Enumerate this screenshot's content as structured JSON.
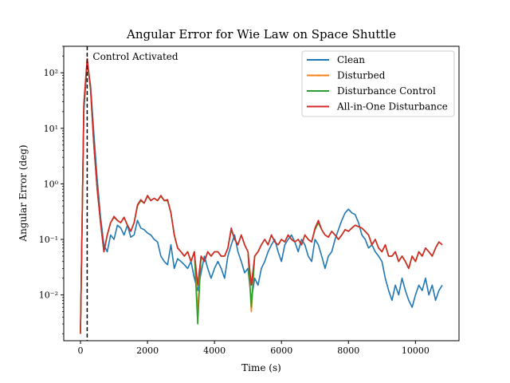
{
  "chart_data": {
    "type": "line",
    "title": "Angular Error for Wie Law on Space Shuttle",
    "xlabel": "Time (s)",
    "ylabel": "Angular Error (deg)",
    "xlim": [
      -500,
      11300
    ],
    "ylim": [
      0.0015,
      300
    ],
    "yscale": "log",
    "x_ticks": [
      0,
      2000,
      4000,
      6000,
      8000,
      10000
    ],
    "x_tick_labels": [
      "0",
      "2000",
      "4000",
      "6000",
      "8000",
      "10000"
    ],
    "y_ticks": [
      0.01,
      0.1,
      1,
      10,
      100
    ],
    "y_tick_labels": [
      "10⁻²",
      "10⁻¹",
      "10⁰",
      "10¹",
      "10²"
    ],
    "grid": false,
    "legend_position": "top-right",
    "annotation": {
      "text": "Control Activated",
      "x": 200,
      "line_style": "dashed",
      "color": "#000000"
    },
    "series": [
      {
        "name": "Clean",
        "color": "#1f77b4",
        "x": [
          0,
          100,
          200,
          300,
          400,
          500,
          600,
          700,
          800,
          900,
          1000,
          1100,
          1200,
          1300,
          1400,
          1500,
          1600,
          1700,
          1800,
          1900,
          2000,
          2100,
          2200,
          2300,
          2400,
          2500,
          2600,
          2700,
          2800,
          2900,
          3000,
          3100,
          3200,
          3300,
          3400,
          3500,
          3600,
          3700,
          3800,
          3900,
          4000,
          4100,
          4200,
          4300,
          4400,
          4500,
          4600,
          4700,
          4800,
          4900,
          5000,
          5100,
          5200,
          5300,
          5400,
          5500,
          5600,
          5700,
          5800,
          5900,
          6000,
          6100,
          6200,
          6300,
          6400,
          6500,
          6600,
          6700,
          6800,
          6900,
          7000,
          7100,
          7200,
          7300,
          7400,
          7500,
          7600,
          7700,
          7800,
          7900,
          8000,
          8100,
          8200,
          8300,
          8400,
          8500,
          8600,
          8700,
          8800,
          8900,
          9000,
          9100,
          9200,
          9300,
          9400,
          9500,
          9600,
          9700,
          9800,
          9900,
          10000,
          10100,
          10200,
          10300,
          10400,
          10500,
          10600,
          10700,
          10800
        ],
        "y": [
          0.0025,
          20,
          150,
          60,
          8,
          1.2,
          0.25,
          0.08,
          0.06,
          0.12,
          0.1,
          0.18,
          0.16,
          0.12,
          0.18,
          0.11,
          0.12,
          0.22,
          0.16,
          0.15,
          0.13,
          0.12,
          0.1,
          0.09,
          0.05,
          0.04,
          0.035,
          0.08,
          0.03,
          0.045,
          0.04,
          0.035,
          0.03,
          0.04,
          0.02,
          0.012,
          0.025,
          0.05,
          0.03,
          0.02,
          0.03,
          0.04,
          0.03,
          0.02,
          0.05,
          0.08,
          0.12,
          0.06,
          0.04,
          0.025,
          0.03,
          0.008,
          0.02,
          0.015,
          0.03,
          0.04,
          0.06,
          0.08,
          0.1,
          0.06,
          0.04,
          0.08,
          0.1,
          0.12,
          0.09,
          0.06,
          0.1,
          0.08,
          0.05,
          0.04,
          0.1,
          0.08,
          0.05,
          0.03,
          0.05,
          0.06,
          0.1,
          0.15,
          0.22,
          0.3,
          0.35,
          0.3,
          0.28,
          0.2,
          0.12,
          0.1,
          0.07,
          0.08,
          0.06,
          0.05,
          0.04,
          0.02,
          0.012,
          0.008,
          0.015,
          0.01,
          0.02,
          0.012,
          0.008,
          0.006,
          0.01,
          0.015,
          0.012,
          0.02,
          0.01,
          0.015,
          0.008,
          0.012,
          0.015
        ]
      },
      {
        "name": "Disturbed",
        "color": "#ff7f0e",
        "x": [
          0,
          100,
          200,
          300,
          400,
          500,
          600,
          700,
          800,
          900,
          1000,
          1100,
          1200,
          1300,
          1400,
          1500,
          1600,
          1700,
          1800,
          1900,
          2000,
          2100,
          2200,
          2300,
          2400,
          2500,
          2600,
          2700,
          2800,
          2900,
          3000,
          3100,
          3200,
          3300,
          3400,
          3500,
          3600,
          3700,
          3800,
          3900,
          4000,
          4100,
          4200,
          4300,
          4400,
          4500,
          4600,
          4700,
          4800,
          4900,
          5000,
          5100,
          5200,
          5300,
          5400,
          5500,
          5600,
          5700,
          5800,
          5900,
          6000,
          6100,
          6200,
          6300,
          6400,
          6500,
          6600,
          6700,
          6800,
          6900,
          7000,
          7100,
          7200,
          7300,
          7400,
          7500,
          7600,
          7700,
          7800,
          7900,
          8000,
          8100,
          8200,
          8300,
          8400,
          8500,
          8600,
          8700,
          8800,
          8900,
          9000,
          9100,
          9200,
          9300,
          9400,
          9500,
          9600,
          9700,
          9800,
          9900,
          10000,
          10100,
          10200,
          10300,
          10400,
          10500,
          10600,
          10700,
          10800
        ],
        "y": [
          0.002,
          25,
          170,
          50,
          5,
          0.8,
          0.2,
          0.06,
          0.12,
          0.2,
          0.25,
          0.22,
          0.2,
          0.25,
          0.18,
          0.14,
          0.2,
          0.4,
          0.5,
          0.45,
          0.6,
          0.5,
          0.55,
          0.5,
          0.6,
          0.5,
          0.5,
          0.3,
          0.12,
          0.07,
          0.06,
          0.05,
          0.06,
          0.04,
          0.06,
          0.005,
          0.05,
          0.04,
          0.06,
          0.05,
          0.06,
          0.06,
          0.05,
          0.05,
          0.07,
          0.15,
          0.1,
          0.08,
          0.12,
          0.08,
          0.06,
          0.005,
          0.05,
          0.06,
          0.08,
          0.1,
          0.08,
          0.12,
          0.09,
          0.08,
          0.1,
          0.09,
          0.12,
          0.1,
          0.09,
          0.1,
          0.08,
          0.12,
          0.1,
          0.09,
          0.15,
          0.2,
          0.15,
          0.12,
          0.11,
          0.14,
          0.12,
          0.1,
          0.12,
          0.15,
          0.14,
          0.16,
          0.18,
          0.17,
          0.16,
          0.14,
          0.12,
          0.08,
          0.1,
          0.07,
          0.06,
          0.08,
          0.05,
          0.05,
          0.06,
          0.04,
          0.05,
          0.04,
          0.03,
          0.05,
          0.04,
          0.06,
          0.05,
          0.07,
          0.06,
          0.05,
          0.07,
          0.09,
          0.08
        ]
      },
      {
        "name": "Disturbance Control",
        "color": "#2ca02c",
        "x": [
          0,
          100,
          200,
          300,
          400,
          500,
          600,
          700,
          800,
          900,
          1000,
          1100,
          1200,
          1300,
          1400,
          1500,
          1600,
          1700,
          1800,
          1900,
          2000,
          2100,
          2200,
          2300,
          2400,
          2500,
          2600,
          2700,
          2800,
          2900,
          3000,
          3100,
          3200,
          3300,
          3400,
          3500,
          3600,
          3700,
          3800,
          3900,
          4000,
          4100,
          4200,
          4300,
          4400,
          4500,
          4600,
          4700,
          4800,
          4900,
          5000,
          5100,
          5200,
          5300,
          5400,
          5500,
          5600,
          5700,
          5800,
          5900,
          6000,
          6100,
          6200,
          6300,
          6400,
          6500,
          6600,
          6700,
          6800,
          6900,
          7000,
          7100,
          7200,
          7300,
          7400,
          7500,
          7600,
          7700,
          7800,
          7900,
          8000,
          8100,
          8200,
          8300,
          8400,
          8500,
          8600,
          8700,
          8800,
          8900,
          9000,
          9100,
          9200,
          9300,
          9400,
          9500,
          9600,
          9700,
          9800,
          9900,
          10000,
          10100,
          10200,
          10300,
          10400,
          10500,
          10600,
          10700,
          10800
        ],
        "y": [
          0.002,
          25,
          170,
          50,
          5,
          0.8,
          0.2,
          0.06,
          0.12,
          0.2,
          0.25,
          0.22,
          0.2,
          0.25,
          0.18,
          0.14,
          0.2,
          0.4,
          0.5,
          0.45,
          0.6,
          0.5,
          0.55,
          0.5,
          0.6,
          0.5,
          0.5,
          0.3,
          0.12,
          0.07,
          0.06,
          0.05,
          0.06,
          0.04,
          0.06,
          0.003,
          0.05,
          0.04,
          0.06,
          0.05,
          0.06,
          0.06,
          0.05,
          0.05,
          0.07,
          0.15,
          0.1,
          0.08,
          0.12,
          0.08,
          0.06,
          0.006,
          0.05,
          0.06,
          0.08,
          0.1,
          0.08,
          0.12,
          0.09,
          0.08,
          0.1,
          0.09,
          0.12,
          0.1,
          0.09,
          0.1,
          0.08,
          0.12,
          0.1,
          0.09,
          0.15,
          0.2,
          0.15,
          0.12,
          0.11,
          0.14,
          0.12,
          0.1,
          0.12,
          0.15,
          0.14,
          0.16,
          0.18,
          0.17,
          0.16,
          0.14,
          0.12,
          0.08,
          0.1,
          0.07,
          0.06,
          0.08,
          0.05,
          0.05,
          0.06,
          0.04,
          0.05,
          0.04,
          0.03,
          0.05,
          0.04,
          0.06,
          0.05,
          0.07,
          0.06,
          0.05,
          0.07,
          0.09,
          0.08
        ]
      },
      {
        "name": "All-in-One Disturbance",
        "color": "#d62728",
        "x": [
          0,
          100,
          200,
          300,
          400,
          500,
          600,
          700,
          800,
          900,
          1000,
          1100,
          1200,
          1300,
          1400,
          1500,
          1600,
          1700,
          1800,
          1900,
          2000,
          2100,
          2200,
          2300,
          2400,
          2500,
          2600,
          2700,
          2800,
          2900,
          3000,
          3100,
          3200,
          3300,
          3400,
          3500,
          3600,
          3700,
          3800,
          3900,
          4000,
          4100,
          4200,
          4300,
          4400,
          4500,
          4600,
          4700,
          4800,
          4900,
          5000,
          5100,
          5200,
          5300,
          5400,
          5500,
          5600,
          5700,
          5800,
          5900,
          6000,
          6100,
          6200,
          6300,
          6400,
          6500,
          6600,
          6700,
          6800,
          6900,
          7000,
          7100,
          7200,
          7300,
          7400,
          7500,
          7600,
          7700,
          7800,
          7900,
          8000,
          8100,
          8200,
          8300,
          8400,
          8500,
          8600,
          8700,
          8800,
          8900,
          9000,
          9100,
          9200,
          9300,
          9400,
          9500,
          9600,
          9700,
          9800,
          9900,
          10000,
          10100,
          10200,
          10300,
          10400,
          10500,
          10600,
          10700,
          10800
        ],
        "y": [
          0.002,
          28,
          180,
          55,
          5,
          0.8,
          0.2,
          0.06,
          0.12,
          0.2,
          0.26,
          0.22,
          0.2,
          0.25,
          0.18,
          0.14,
          0.2,
          0.42,
          0.52,
          0.45,
          0.62,
          0.5,
          0.55,
          0.5,
          0.62,
          0.5,
          0.52,
          0.3,
          0.12,
          0.07,
          0.06,
          0.05,
          0.06,
          0.04,
          0.06,
          0.015,
          0.05,
          0.04,
          0.06,
          0.05,
          0.06,
          0.06,
          0.05,
          0.05,
          0.07,
          0.16,
          0.1,
          0.08,
          0.12,
          0.08,
          0.06,
          0.015,
          0.05,
          0.06,
          0.08,
          0.1,
          0.08,
          0.12,
          0.09,
          0.08,
          0.1,
          0.09,
          0.12,
          0.1,
          0.09,
          0.1,
          0.08,
          0.12,
          0.1,
          0.09,
          0.16,
          0.22,
          0.15,
          0.12,
          0.11,
          0.14,
          0.12,
          0.1,
          0.12,
          0.15,
          0.14,
          0.16,
          0.18,
          0.17,
          0.16,
          0.14,
          0.12,
          0.08,
          0.1,
          0.07,
          0.06,
          0.08,
          0.05,
          0.05,
          0.06,
          0.04,
          0.05,
          0.04,
          0.03,
          0.05,
          0.04,
          0.06,
          0.05,
          0.07,
          0.06,
          0.05,
          0.07,
          0.09,
          0.08
        ]
      }
    ]
  }
}
